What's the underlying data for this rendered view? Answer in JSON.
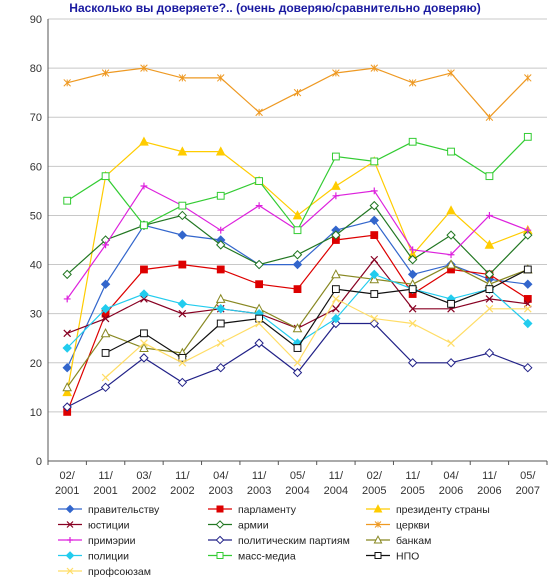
{
  "chart_data": {
    "type": "line",
    "title": "Насколько вы доверяете?.. (очень доверяю/сравнительно доверяю)",
    "xlabel": "",
    "ylabel": "",
    "ylim": [
      0,
      90
    ],
    "y_ticks": [
      0,
      10,
      20,
      30,
      40,
      50,
      60,
      70,
      80,
      90
    ],
    "categories": [
      "02/ 2001",
      "11/ 2001",
      "03/ 2002",
      "11/ 2002",
      "04/ 2003",
      "11/ 2003",
      "05/ 2004",
      "11/ 2004",
      "02/ 2005",
      "11/ 2005",
      "04/ 2006",
      "11/ 2006",
      "05/ 2007"
    ],
    "grid": "horizontal",
    "legend_position": "bottom",
    "series": [
      {
        "name": "правительству",
        "color": "#3366cc",
        "marker": "diamond",
        "values": [
          19,
          36,
          48,
          46,
          45,
          40,
          40,
          47,
          49,
          38,
          40,
          37,
          36
        ]
      },
      {
        "name": "парламенту",
        "color": "#dd0000",
        "marker": "square",
        "values": [
          10,
          30,
          39,
          40,
          39,
          36,
          35,
          45,
          46,
          34,
          39,
          38,
          33
        ]
      },
      {
        "name": "президенту страны",
        "color": "#ffcc00",
        "marker": "triangle",
        "values": [
          14,
          58,
          65,
          63,
          63,
          57,
          50,
          56,
          61,
          42,
          51,
          44,
          47
        ]
      },
      {
        "name": "юстиции",
        "color": "#880022",
        "marker": "x",
        "values": [
          26,
          29,
          33,
          30,
          31,
          30,
          27,
          31,
          41,
          31,
          31,
          33,
          32
        ]
      },
      {
        "name": "армии",
        "color": "#227722",
        "marker": "diamond-open",
        "values": [
          38,
          45,
          48,
          50,
          44,
          40,
          42,
          46,
          52,
          41,
          46,
          38,
          46
        ]
      },
      {
        "name": "церкви",
        "color": "#ee9922",
        "marker": "asterisk",
        "values": [
          77,
          79,
          80,
          78,
          78,
          71,
          75,
          79,
          80,
          77,
          79,
          70,
          78
        ]
      },
      {
        "name": "примэрии",
        "color": "#dd22dd",
        "marker": "plus",
        "values": [
          33,
          44,
          56,
          52,
          47,
          52,
          47,
          54,
          55,
          43,
          42,
          50,
          47
        ]
      },
      {
        "name": "политическим партиям",
        "color": "#222288",
        "marker": "diamond-open",
        "values": [
          11,
          15,
          21,
          16,
          19,
          24,
          18,
          28,
          28,
          20,
          20,
          22,
          19
        ]
      },
      {
        "name": "банкам",
        "color": "#888822",
        "marker": "triangle-open",
        "values": [
          15,
          26,
          23,
          22,
          33,
          31,
          27,
          38,
          37,
          36,
          40,
          36,
          39
        ]
      },
      {
        "name": "полиции",
        "color": "#22ccee",
        "marker": "diamond",
        "values": [
          23,
          31,
          34,
          32,
          31,
          30,
          24,
          29,
          38,
          35,
          33,
          35,
          28
        ]
      },
      {
        "name": "масс-медиа",
        "color": "#33cc33",
        "marker": "square-open",
        "values": [
          53,
          58,
          48,
          52,
          54,
          57,
          47,
          62,
          61,
          65,
          63,
          58,
          66
        ]
      },
      {
        "name": "НПО",
        "color": "#111111",
        "marker": "square-open",
        "values": [
          null,
          22,
          26,
          21,
          28,
          29,
          23,
          35,
          34,
          35,
          32,
          35,
          39
        ]
      },
      {
        "name": "профсоюзам",
        "color": "#ffdd66",
        "marker": "x",
        "values": [
          null,
          17,
          24,
          20,
          24,
          28,
          20,
          33,
          29,
          28,
          24,
          31,
          31
        ]
      }
    ]
  }
}
